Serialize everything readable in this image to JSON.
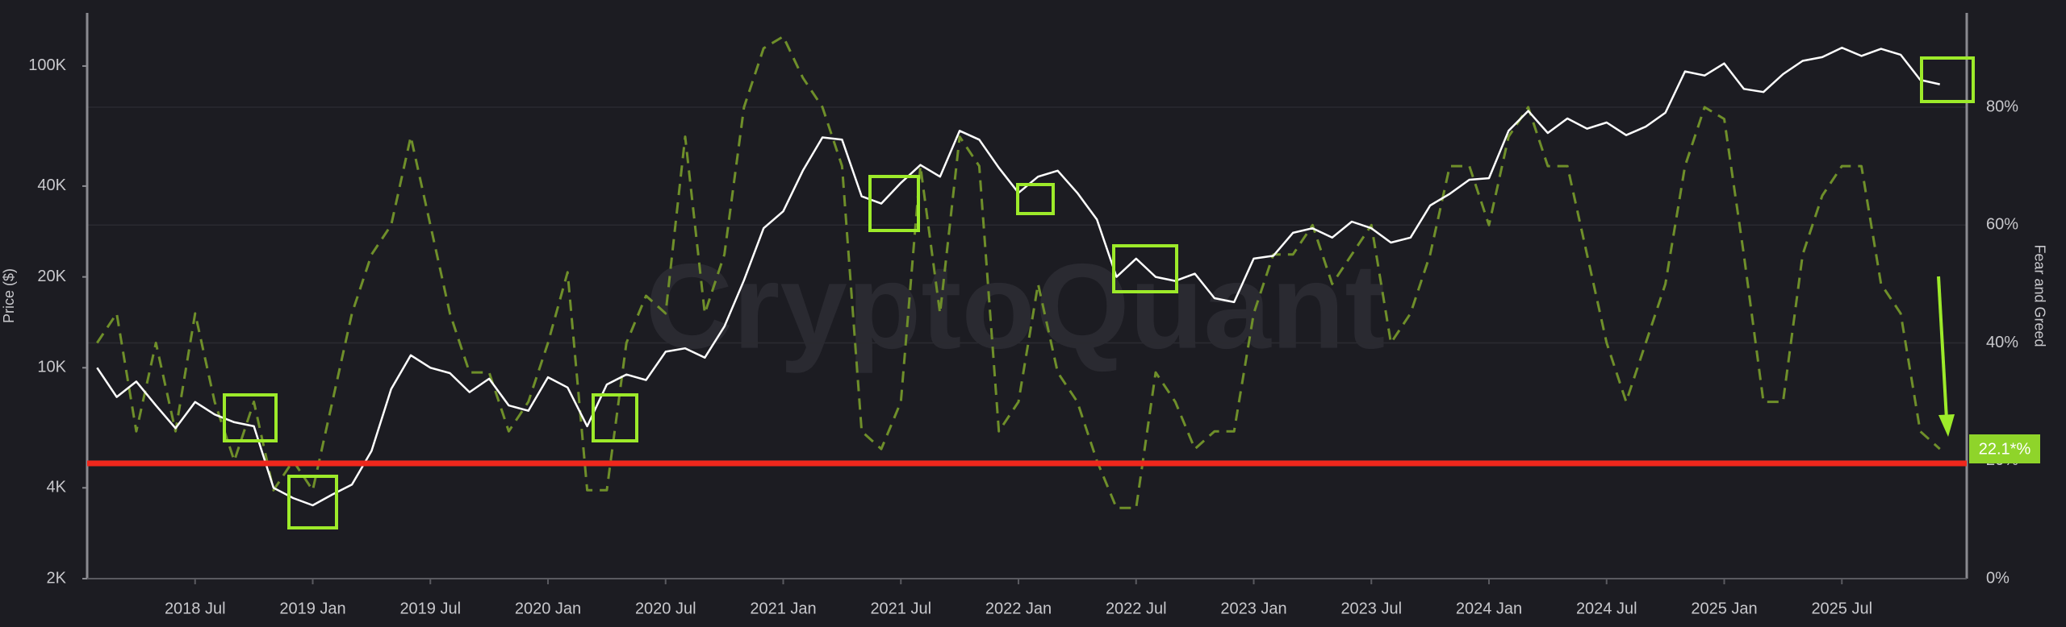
{
  "chart_data": {
    "type": "line",
    "watermark": "CryptoQuant",
    "ylabel": "Price ($)",
    "y2label": "Fear and Greed",
    "annotation": "22.1*%",
    "yscale": "log",
    "grid": true,
    "xlim": [
      "2018-01",
      "2026-01"
    ],
    "xticks": [
      {
        "value": "2018-07",
        "label": "2018 Jul"
      },
      {
        "value": "2019-01",
        "label": "2019 Jan"
      },
      {
        "value": "2019-07",
        "label": "2019 Jul"
      },
      {
        "value": "2020-01",
        "label": "2020 Jan"
      },
      {
        "value": "2020-07",
        "label": "2020 Jul"
      },
      {
        "value": "2021-01",
        "label": "2021 Jan"
      },
      {
        "value": "2021-07",
        "label": "2021 Jul"
      },
      {
        "value": "2022-01",
        "label": "2022 Jan"
      },
      {
        "value": "2022-07",
        "label": "2022 Jul"
      },
      {
        "value": "2023-01",
        "label": "2023 Jan"
      },
      {
        "value": "2023-07",
        "label": "2023 Jul"
      },
      {
        "value": "2024-01",
        "label": "2024 Jan"
      },
      {
        "value": "2024-07",
        "label": "2024 Jul"
      },
      {
        "value": "2025-01",
        "label": "2025 Jan"
      },
      {
        "value": "2025-07",
        "label": "2025 Jul"
      }
    ],
    "ylim": [
      2000,
      150000
    ],
    "yticks": [
      {
        "value": 2000,
        "label": "2K"
      },
      {
        "value": 4000,
        "label": "4K"
      },
      {
        "value": 10000,
        "label": "10K"
      },
      {
        "value": 20000,
        "label": "20K"
      },
      {
        "value": 40000,
        "label": "40K"
      },
      {
        "value": 100000,
        "label": "100K"
      }
    ],
    "y2lim": [
      0,
      96
    ],
    "y2ticks": [
      {
        "value": 0,
        "label": "0%"
      },
      {
        "value": 20,
        "label": "20%"
      },
      {
        "value": 40,
        "label": "40%"
      },
      {
        "value": 60,
        "label": "60%"
      },
      {
        "value": 80,
        "label": "80%"
      }
    ],
    "x": [
      "2018-02",
      "2018-03",
      "2018-04",
      "2018-05",
      "2018-06",
      "2018-07",
      "2018-08",
      "2018-09",
      "2018-10",
      "2018-11",
      "2018-12",
      "2019-01",
      "2019-02",
      "2019-03",
      "2019-04",
      "2019-05",
      "2019-06",
      "2019-07",
      "2019-08",
      "2019-09",
      "2019-10",
      "2019-11",
      "2019-12",
      "2020-01",
      "2020-02",
      "2020-03",
      "2020-04",
      "2020-05",
      "2020-06",
      "2020-07",
      "2020-08",
      "2020-09",
      "2020-10",
      "2020-11",
      "2020-12",
      "2021-01",
      "2021-02",
      "2021-03",
      "2021-04",
      "2021-05",
      "2021-06",
      "2021-07",
      "2021-08",
      "2021-09",
      "2021-10",
      "2021-11",
      "2021-12",
      "2022-01",
      "2022-02",
      "2022-03",
      "2022-04",
      "2022-05",
      "2022-06",
      "2022-07",
      "2022-08",
      "2022-09",
      "2022-10",
      "2022-11",
      "2022-12",
      "2023-01",
      "2023-02",
      "2023-03",
      "2023-04",
      "2023-05",
      "2023-06",
      "2023-07",
      "2023-08",
      "2023-09",
      "2023-10",
      "2023-11",
      "2023-12",
      "2024-01",
      "2024-02",
      "2024-03",
      "2024-04",
      "2024-05",
      "2024-06",
      "2024-07",
      "2024-08",
      "2024-09",
      "2024-10",
      "2024-11",
      "2024-12",
      "2025-01",
      "2025-02",
      "2025-03",
      "2025-04",
      "2025-05",
      "2025-06",
      "2025-07",
      "2025-08",
      "2025-09",
      "2025-10",
      "2025-11",
      "2025-12"
    ],
    "series": [
      {
        "color": "#ffffff",
        "values": [
          10000,
          8000,
          9000,
          7500,
          6300,
          7700,
          7000,
          6600,
          6400,
          4000,
          3700,
          3500,
          3800,
          4100,
          5300,
          8500,
          11000,
          10000,
          9600,
          8300,
          9200,
          7500,
          7200,
          9300,
          8600,
          6400,
          8800,
          9500,
          9100,
          11300,
          11600,
          10800,
          13700,
          19500,
          29000,
          33000,
          45000,
          58000,
          57000,
          37000,
          35000,
          41000,
          47000,
          43000,
          61000,
          57000,
          46000,
          38000,
          43000,
          45000,
          38000,
          31000,
          20000,
          23000,
          20000,
          19400,
          20500,
          17000,
          16500,
          23000,
          23500,
          28000,
          29000,
          27000,
          30500,
          29000,
          26000,
          27000,
          34500,
          37700,
          42000,
          42500,
          61000,
          71000,
          60000,
          67000,
          62000,
          65000,
          59000,
          63000,
          70000,
          96000,
          93000,
          102000,
          84000,
          82000,
          94000,
          104000,
          107000,
          115000,
          108000,
          114000,
          109000,
          90000,
          87000
        ]
      },
      {
        "color": "#6f8f2a",
        "axis": "y2",
        "values": [
          40,
          45,
          25,
          40,
          25,
          45,
          30,
          20,
          30,
          15,
          20,
          15,
          30,
          45,
          55,
          60,
          75,
          60,
          45,
          35,
          35,
          25,
          30,
          40,
          52,
          15,
          15,
          40,
          48,
          45,
          75,
          45,
          55,
          80,
          90,
          92,
          85,
          80,
          70,
          25,
          22,
          30,
          70,
          45,
          75,
          70,
          25,
          30,
          50,
          35,
          30,
          20,
          12,
          12,
          35,
          30,
          22,
          25,
          25,
          45,
          55,
          55,
          60,
          50,
          55,
          60,
          40,
          45,
          55,
          70,
          70,
          60,
          75,
          80,
          70,
          70,
          55,
          40,
          30,
          40,
          50,
          70,
          80,
          78,
          55,
          30,
          30,
          55,
          65,
          70,
          70,
          50,
          45,
          25,
          22
        ]
      }
    ]
  }
}
